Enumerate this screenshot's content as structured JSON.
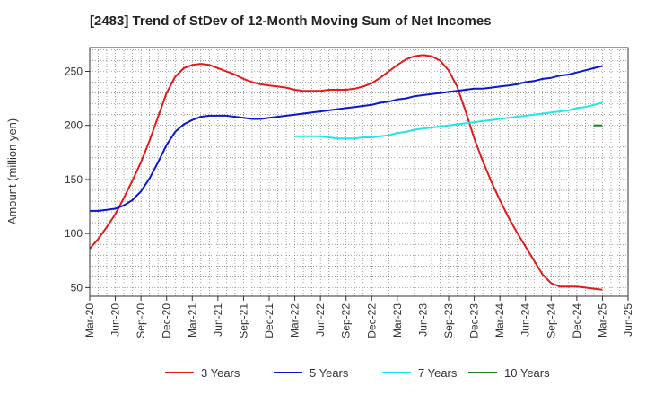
{
  "chart_data": {
    "type": "line",
    "title": "[2483]  Trend of StDev of 12-Month Moving Sum of Net Incomes",
    "ylabel": "Amount (million yen)",
    "xlabel": "",
    "ylim": [
      42,
      272
    ],
    "yticks": [
      50,
      100,
      150,
      200,
      250
    ],
    "x_ticks": [
      "Mar-20",
      "Jun-20",
      "Sep-20",
      "Dec-20",
      "Mar-21",
      "Jun-21",
      "Sep-21",
      "Dec-21",
      "Mar-22",
      "Jun-22",
      "Sep-22",
      "Dec-22",
      "Mar-23",
      "Jun-23",
      "Sep-23",
      "Dec-23",
      "Mar-24",
      "Jun-24",
      "Sep-24",
      "Dec-24",
      "Mar-25",
      "Jun-25"
    ],
    "grid": true,
    "legend_position": "bottom",
    "series": [
      {
        "name": "3 Years",
        "color": "#e31a1c",
        "x": [
          "Mar-20",
          "Apr-20",
          "May-20",
          "Jun-20",
          "Jul-20",
          "Aug-20",
          "Sep-20",
          "Oct-20",
          "Nov-20",
          "Dec-20",
          "Jan-21",
          "Feb-21",
          "Mar-21",
          "Apr-21",
          "May-21",
          "Jun-21",
          "Jul-21",
          "Aug-21",
          "Sep-21",
          "Oct-21",
          "Nov-21",
          "Dec-21",
          "Jan-22",
          "Feb-22",
          "Mar-22",
          "Apr-22",
          "May-22",
          "Jun-22",
          "Jul-22",
          "Aug-22",
          "Sep-22",
          "Oct-22",
          "Nov-22",
          "Dec-22",
          "Jan-23",
          "Feb-23",
          "Mar-23",
          "Apr-23",
          "May-23",
          "Jun-23",
          "Jul-23",
          "Aug-23",
          "Sep-23",
          "Oct-23",
          "Nov-23",
          "Dec-23",
          "Jan-24",
          "Feb-24",
          "Mar-24",
          "Apr-24",
          "May-24",
          "Jun-24",
          "Jul-24",
          "Aug-24",
          "Sep-24",
          "Oct-24",
          "Nov-24",
          "Dec-24",
          "Jan-25",
          "Feb-25",
          "Mar-25"
        ],
        "values": [
          86,
          95,
          106,
          118,
          133,
          149,
          166,
          186,
          208,
          230,
          245,
          253,
          256,
          257,
          256,
          253,
          250,
          247,
          243,
          240,
          238,
          237,
          236,
          235,
          233,
          232,
          232,
          232,
          233,
          233,
          233,
          234,
          236,
          239,
          244,
          250,
          256,
          261,
          264,
          265,
          264,
          260,
          251,
          236,
          213,
          188,
          167,
          148,
          131,
          115,
          101,
          88,
          75,
          62,
          54,
          51,
          51,
          51,
          50,
          49,
          48
        ]
      },
      {
        "name": "5 Years",
        "color": "#0a18c9",
        "x": [
          "Mar-20",
          "Apr-20",
          "May-20",
          "Jun-20",
          "Jul-20",
          "Aug-20",
          "Sep-20",
          "Oct-20",
          "Nov-20",
          "Dec-20",
          "Jan-21",
          "Feb-21",
          "Mar-21",
          "Apr-21",
          "May-21",
          "Jun-21",
          "Jul-21",
          "Aug-21",
          "Sep-21",
          "Oct-21",
          "Nov-21",
          "Dec-21",
          "Jan-22",
          "Feb-22",
          "Mar-22",
          "Apr-22",
          "May-22",
          "Jun-22",
          "Jul-22",
          "Aug-22",
          "Sep-22",
          "Oct-22",
          "Nov-22",
          "Dec-22",
          "Jan-23",
          "Feb-23",
          "Mar-23",
          "Apr-23",
          "May-23",
          "Jun-23",
          "Jul-23",
          "Aug-23",
          "Sep-23",
          "Oct-23",
          "Nov-23",
          "Dec-23",
          "Jan-24",
          "Feb-24",
          "Mar-24",
          "Apr-24",
          "May-24",
          "Jun-24",
          "Jul-24",
          "Aug-24",
          "Sep-24",
          "Oct-24",
          "Nov-24",
          "Dec-24",
          "Jan-25",
          "Feb-25",
          "Mar-25"
        ],
        "values": [
          121,
          121,
          122,
          123,
          126,
          131,
          139,
          151,
          166,
          182,
          194,
          201,
          205,
          208,
          209,
          209,
          209,
          208,
          207,
          206,
          206,
          207,
          208,
          209,
          210,
          211,
          212,
          213,
          214,
          215,
          216,
          217,
          218,
          219,
          221,
          222,
          224,
          225,
          227,
          228,
          229,
          230,
          231,
          232,
          233,
          234,
          234,
          235,
          236,
          237,
          238,
          240,
          241,
          243,
          244,
          246,
          247,
          249,
          251,
          253,
          255
        ]
      },
      {
        "name": "7 Years",
        "color": "#22e5e5",
        "x": [
          "Mar-22",
          "Apr-22",
          "May-22",
          "Jun-22",
          "Jul-22",
          "Aug-22",
          "Sep-22",
          "Oct-22",
          "Nov-22",
          "Dec-22",
          "Jan-23",
          "Feb-23",
          "Mar-23",
          "Apr-23",
          "May-23",
          "Jun-23",
          "Jul-23",
          "Aug-23",
          "Sep-23",
          "Oct-23",
          "Nov-23",
          "Dec-23",
          "Jan-24",
          "Feb-24",
          "Mar-24",
          "Apr-24",
          "May-24",
          "Jun-24",
          "Jul-24",
          "Aug-24",
          "Sep-24",
          "Oct-24",
          "Nov-24",
          "Dec-24",
          "Jan-25",
          "Feb-25",
          "Mar-25"
        ],
        "values": [
          190,
          190,
          190,
          190,
          189,
          188,
          188,
          188,
          189,
          189,
          190,
          191,
          193,
          194,
          196,
          197,
          198,
          199,
          200,
          201,
          202,
          203,
          204,
          205,
          206,
          207,
          208,
          209,
          210,
          211,
          212,
          213,
          214,
          216,
          217,
          219,
          221
        ]
      },
      {
        "name": "10 Years",
        "color": "#1f7f1f",
        "x": [
          "Feb-25",
          "Mar-25"
        ],
        "values": [
          200,
          200
        ]
      }
    ]
  }
}
